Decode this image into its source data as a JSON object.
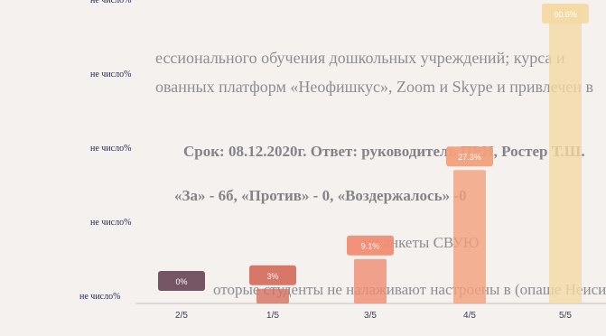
{
  "chart_data": {
    "type": "bar",
    "categories": [
      "2/5",
      "1/5",
      "3/5",
      "4/5",
      "5/5"
    ],
    "values": [
      0,
      3,
      9.1,
      27.3,
      60.6
    ],
    "value_labels": [
      "0%",
      "3%",
      "9.1%",
      "27.3%",
      "60.6%"
    ],
    "ylim": [
      0,
      60.6
    ],
    "y_tick_labels": [
      "не число%",
      "не число%",
      "не число%",
      "не число%",
      "не число%"
    ],
    "grid": false,
    "colors": [
      "#6e4b5c",
      "#d5705f",
      "#f08c73",
      "#f2a07c",
      "#f4d9a4"
    ]
  },
  "background_text": [
    "ессионального обучения дошкольных учреждений; курса и",
    "ованных платформ «Неофишкус», Zoom и Skype и привлечен в",
    "Срок: 08.12.2020г. Ответ: руководитель ПРИ, Ростер Т.Ш.",
    "«За» - 6б, «Против» - 0, «Воздержалось» -0",
    "ии анкеты СВУЮ",
    "оторые студенты не налаживают настроены в (опаше Неисиены"
  ]
}
